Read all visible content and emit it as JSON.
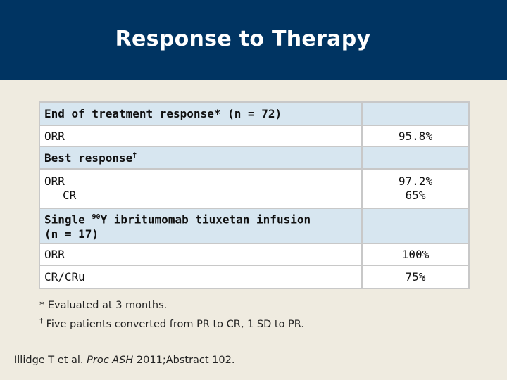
{
  "slide": {
    "title": "Response to Therapy"
  },
  "table": {
    "s1_label": "End of treatment response* (n = 72)",
    "s1_r1_label": "ORR",
    "s1_r1_value": "95.8%",
    "s2_label": "Best response",
    "s2_mark": "†",
    "s2_r1_label_a": "ORR",
    "s2_r1_label_b": "CR",
    "s2_r1_value_a": "97.2%",
    "s2_r1_value_b": "65%",
    "s3_label_pre": "Single ",
    "s3_sup": "90",
    "s3_label_post": "Y ibritumomab tiuxetan infusion",
    "s3_label_line2": "(n = 17)",
    "s3_r1_label": "ORR",
    "s3_r1_value": "100%",
    "s3_r2_label": "CR/CRu",
    "s3_r2_value": "75%"
  },
  "footnotes": {
    "fn1": "* Evaluated at 3 months.",
    "fn2_mark": "†",
    "fn2": " Five patients converted from PR to CR, 1 SD to PR."
  },
  "citation": {
    "authors": "Illidge T et al. ",
    "journal": "Proc ASH",
    "rest": " 2011;Abstract 102."
  }
}
